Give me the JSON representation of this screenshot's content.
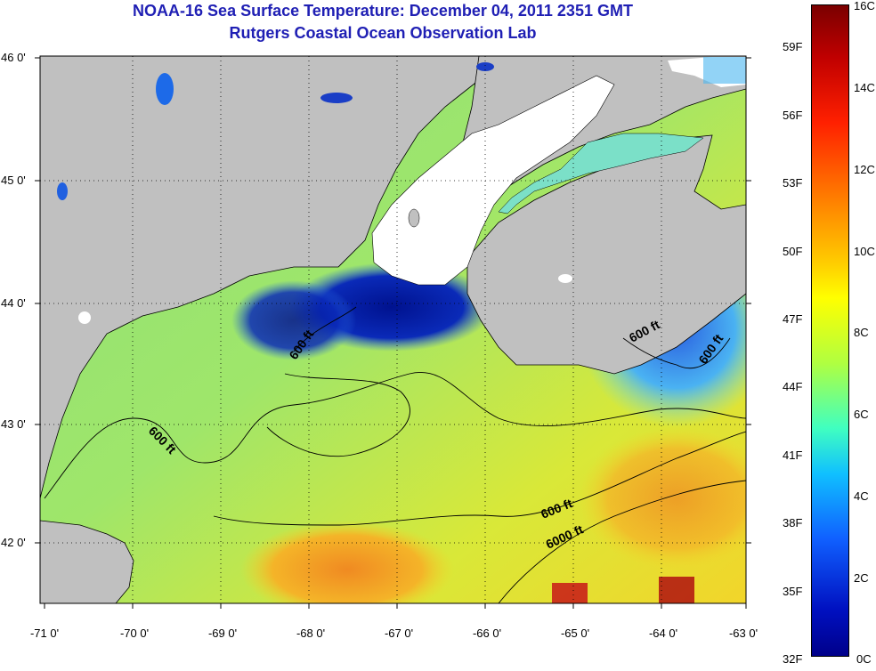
{
  "title": "NOAA-16 Sea Surface Temperature:  December 04, 2011 2351 GMT",
  "subtitle": "Rutgers Coastal Ocean Observation Lab",
  "map": {
    "lon_ticks": [
      "-71 0'",
      "-70 0'",
      "-69 0'",
      "-68 0'",
      "-67 0'",
      "-66 0'",
      "-65 0'",
      "-64 0'",
      "-63 0'"
    ],
    "lat_ticks": [
      "46 0'",
      "45 0'",
      "44 0'",
      "43 0'",
      "42 0'"
    ],
    "contour_labels": [
      "600 ft",
      "600 ft",
      "600 ft",
      "600 ft",
      "600 ft",
      "6000 ft"
    ],
    "land_color": "#c0c0c0",
    "cloud_color": "#ffffff",
    "ocean_colors": {
      "cold": "#00108c",
      "cool": "#3aa6f0",
      "mid": "#7ee68a",
      "warm": "#e6e31a",
      "hot": "#f07a1a",
      "very_hot": "#c01010"
    }
  },
  "colorbar": {
    "celsius_labels": [
      "16C",
      "14C",
      "12C",
      "10C",
      "8C",
      "6C",
      "4C",
      "2C",
      "0C"
    ],
    "fahrenheit_labels": [
      "59F",
      "56F",
      "53F",
      "50F",
      "47F",
      "44F",
      "41F",
      "38F",
      "35F",
      "32F"
    ]
  }
}
